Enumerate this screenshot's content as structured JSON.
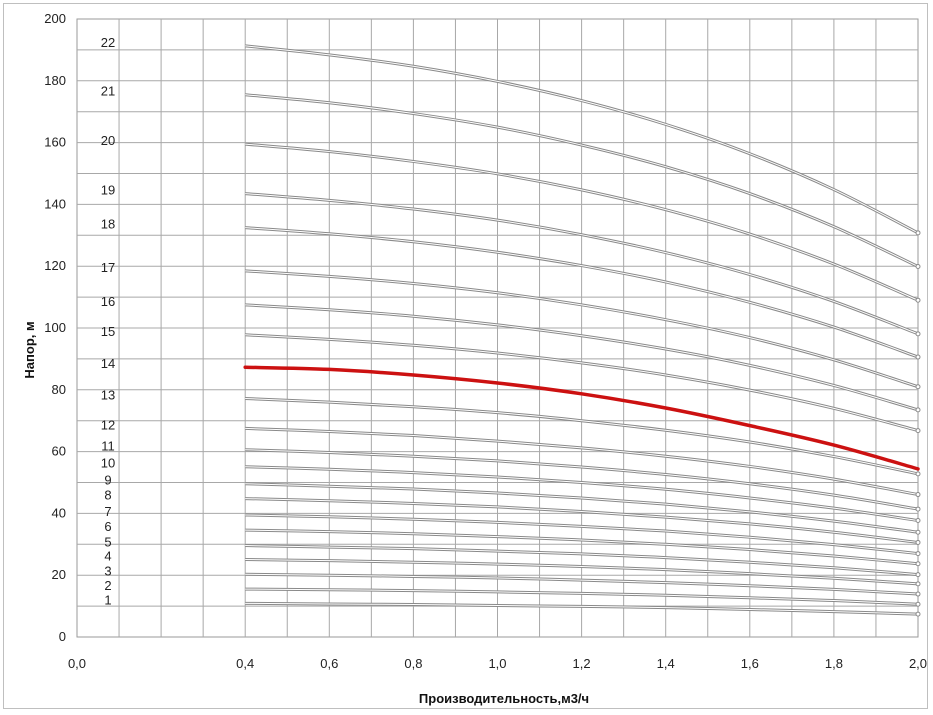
{
  "chart_data": {
    "type": "line",
    "title": "",
    "xlabel": "Производительность,м3/ч",
    "ylabel": "Напор, м",
    "xlim": [
      0.0,
      2.0
    ],
    "ylim": [
      0,
      200
    ],
    "x_ticks": [
      "0,0",
      "0,4",
      "0,6",
      "0,8",
      "1,0",
      "1,2",
      "1,4",
      "1,6",
      "1,8",
      "2,0"
    ],
    "y_ticks": [
      "0",
      "20",
      "40",
      "60",
      "80",
      "100",
      "120",
      "140",
      "160",
      "180",
      "200"
    ],
    "grid": true,
    "highlight_color": "#cc1111",
    "line_color": "#8a8a8a",
    "x": [
      0.4,
      0.6,
      0.8,
      1.0,
      1.2,
      1.4,
      1.6,
      1.8,
      2.0
    ],
    "series": [
      {
        "name": "1",
        "values": [
          10.9,
          10.7,
          10.5,
          10.2,
          9.9,
          9.5,
          8.9,
          8.2,
          7.4
        ]
      },
      {
        "name": "2",
        "values": [
          15.5,
          15.3,
          15.0,
          14.6,
          14.1,
          13.5,
          12.7,
          11.8,
          10.6
        ]
      },
      {
        "name": "3",
        "values": [
          20.3,
          20.0,
          19.6,
          19.1,
          18.4,
          17.6,
          16.6,
          15.4,
          13.9
        ]
      },
      {
        "name": "4",
        "values": [
          25.1,
          24.7,
          24.2,
          23.6,
          22.8,
          21.8,
          20.5,
          19.0,
          17.2
        ]
      },
      {
        "name": "5",
        "values": [
          29.6,
          29.1,
          28.6,
          27.8,
          26.9,
          25.7,
          24.2,
          22.4,
          20.2
        ]
      },
      {
        "name": "6",
        "values": [
          34.6,
          34.1,
          33.4,
          32.5,
          31.4,
          30.0,
          28.3,
          26.2,
          23.7
        ]
      },
      {
        "name": "7",
        "values": [
          39.5,
          38.9,
          38.1,
          37.1,
          35.8,
          34.3,
          32.3,
          29.9,
          27.0
        ]
      },
      {
        "name": "8",
        "values": [
          44.8,
          44.1,
          43.2,
          42.1,
          40.6,
          38.8,
          36.6,
          33.9,
          30.6
        ]
      },
      {
        "name": "9",
        "values": [
          49.6,
          48.8,
          47.9,
          46.6,
          45.0,
          43.0,
          40.5,
          37.5,
          33.9
        ]
      },
      {
        "name": "10",
        "values": [
          55.1,
          54.3,
          53.2,
          51.8,
          50.0,
          47.8,
          45.0,
          41.7,
          37.7
        ]
      },
      {
        "name": "11",
        "values": [
          60.6,
          59.7,
          58.5,
          57.0,
          55.0,
          52.6,
          49.6,
          45.9,
          41.4
        ]
      },
      {
        "name": "12",
        "values": [
          67.5,
          66.5,
          65.2,
          63.4,
          61.2,
          58.5,
          55.2,
          51.1,
          46.1
        ]
      },
      {
        "name": "13",
        "values": [
          77.2,
          76.0,
          74.5,
          72.6,
          70.0,
          66.9,
          63.1,
          58.4,
          52.8
        ]
      },
      {
        "name": "14",
        "values": [
          87.3,
          86.6,
          84.8,
          82.2,
          78.7,
          74.1,
          68.4,
          62.1,
          54.4
        ],
        "highlight": true
      },
      {
        "name": "15",
        "values": [
          97.8,
          96.3,
          94.4,
          91.9,
          88.7,
          84.8,
          79.9,
          74.0,
          66.8
        ]
      },
      {
        "name": "16",
        "values": [
          107.5,
          105.9,
          103.8,
          101.0,
          97.5,
          93.2,
          87.9,
          81.4,
          73.5
        ]
      },
      {
        "name": "17",
        "values": [
          118.5,
          116.7,
          114.4,
          111.4,
          107.5,
          102.7,
          96.9,
          89.7,
          81.0
        ]
      },
      {
        "name": "18",
        "values": [
          132.5,
          130.5,
          127.9,
          124.5,
          120.2,
          114.9,
          108.3,
          100.3,
          90.6
        ]
      },
      {
        "name": "19",
        "values": [
          143.5,
          141.3,
          138.5,
          134.9,
          130.2,
          124.4,
          117.3,
          108.6,
          98.1
        ]
      },
      {
        "name": "20",
        "values": [
          159.5,
          157.1,
          153.9,
          149.9,
          144.7,
          138.3,
          130.4,
          120.7,
          109.0
        ]
      },
      {
        "name": "21",
        "values": [
          175.5,
          172.9,
          169.4,
          165.0,
          159.2,
          152.2,
          143.5,
          132.8,
          119.9
        ]
      },
      {
        "name": "22",
        "values": [
          191.3,
          188.4,
          184.7,
          179.8,
          173.6,
          165.9,
          156.4,
          144.8,
          130.8
        ]
      }
    ]
  }
}
